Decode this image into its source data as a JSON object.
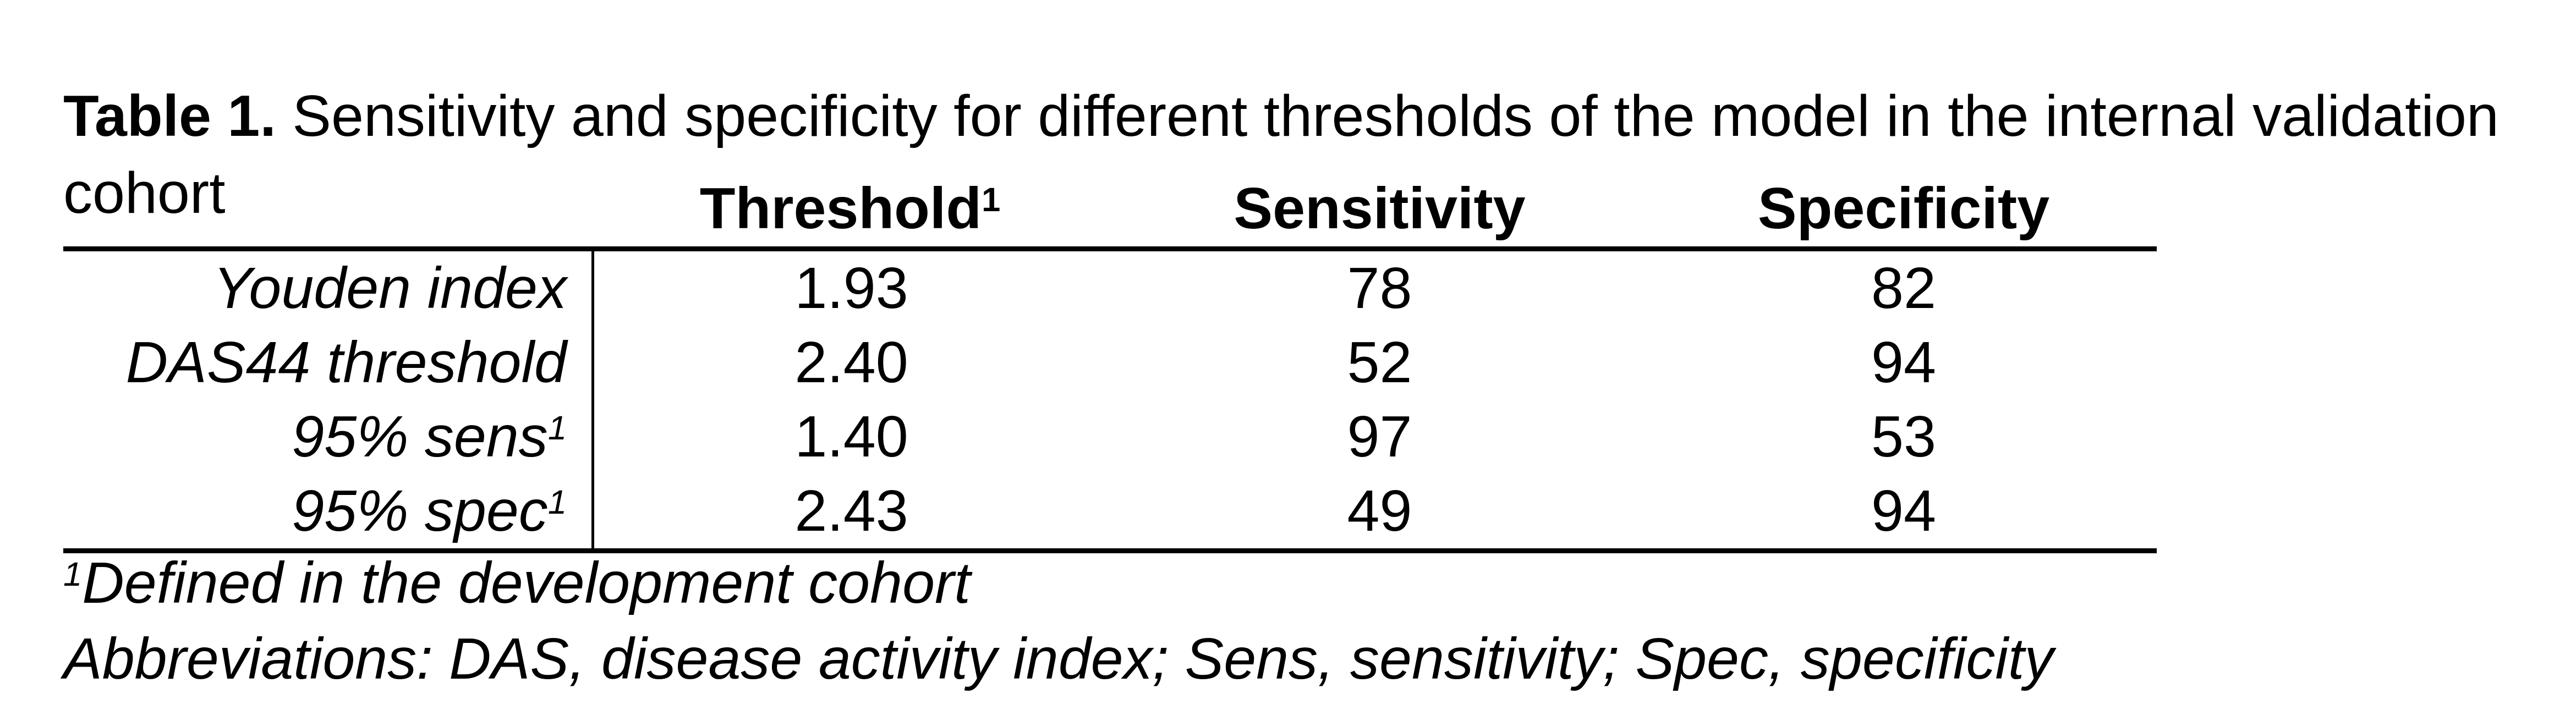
{
  "colors": {
    "background": "#ffffff",
    "text": "#000000",
    "rule": "#000000"
  },
  "title": {
    "prefix": "Table 1.",
    "separator": " ",
    "text": "Sensitivity and specificity for different thresholds of the model in the internal validation cohort"
  },
  "table": {
    "columns": [
      {
        "label": "Threshold",
        "sup": "1"
      },
      {
        "label": "Sensitivity",
        "sup": ""
      },
      {
        "label": "Specificity",
        "sup": ""
      }
    ],
    "rows": [
      {
        "label": "Youden index",
        "sup": "",
        "threshold": "1.93",
        "sensitivity": "78",
        "specificity": "82"
      },
      {
        "label": "DAS44 threshold",
        "sup": "",
        "threshold": "2.40",
        "sensitivity": "52",
        "specificity": "94"
      },
      {
        "label": "95% sens",
        "sup": "1",
        "threshold": "1.40",
        "sensitivity": "97",
        "specificity": "53"
      },
      {
        "label": "95% spec",
        "sup": "1",
        "threshold": "2.43",
        "sensitivity": "49",
        "specificity": "94"
      }
    ]
  },
  "footnotes": [
    {
      "sup": "1",
      "text": "Defined in the development cohort"
    },
    {
      "sup": "",
      "text": "Abbreviations: DAS, disease activity index; Sens, sensitivity; Spec, specificity"
    }
  ]
}
